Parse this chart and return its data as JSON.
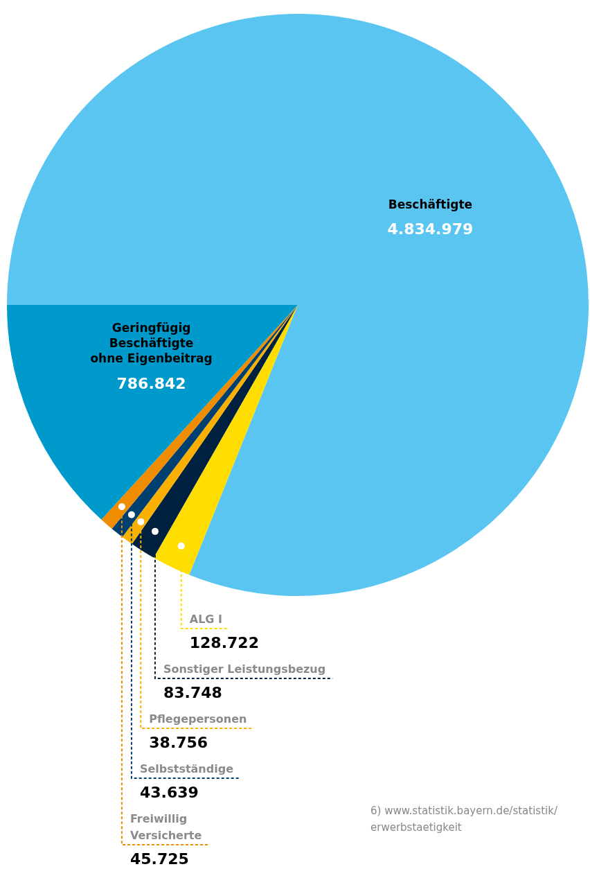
{
  "chart_data": {
    "type": "pie",
    "categories": [
      "Beschäftigte",
      "ALG I",
      "Sonstiger Leistungsbezug",
      "Pflegepersonen",
      "Selbstständige",
      "Freiwillig\nVersicherte",
      "Geringfügig\nBeschäftigte\nohne Eigenbeitrag"
    ],
    "values": [
      4834979,
      128722,
      83748,
      38756,
      43639,
      45725,
      786842
    ],
    "value_labels": [
      "4.834.979",
      "128.722",
      "83.748",
      "38.756",
      "43.639",
      "45.725",
      "786.842"
    ],
    "colors": [
      "#5bc5f2",
      "#ffdd00",
      "#00203f",
      "#f9b000",
      "#004070",
      "#f08c00",
      "#0099cc"
    ],
    "annotations": [
      "6) www.statistik.bayern.de/statistik/\nerwerbstaetigkeit"
    ]
  }
}
